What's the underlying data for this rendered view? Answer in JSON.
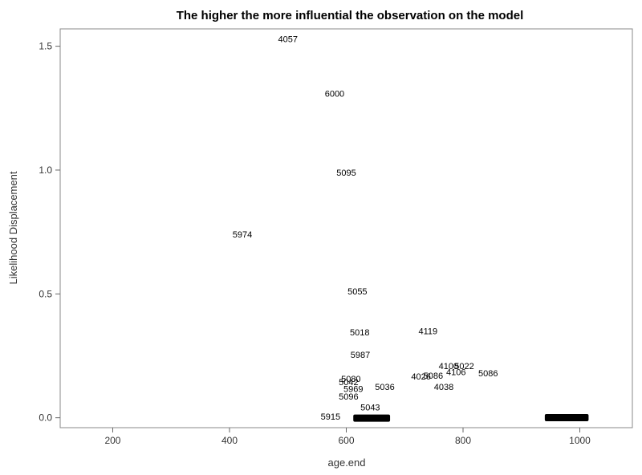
{
  "chart_data": {
    "type": "scatter",
    "title": "The higher the more influential the observation on the model",
    "xlabel": "age.end",
    "ylabel": "Likelihood Displacement",
    "xlim": [
      110,
      1090
    ],
    "ylim": [
      -0.04,
      1.57
    ],
    "xticks": [
      200,
      400,
      600,
      800,
      1000
    ],
    "yticks": [
      0.0,
      0.5,
      1.0,
      1.5
    ],
    "ytick_labels": [
      "0.0",
      "0.5",
      "1.0",
      "1.5"
    ],
    "grid": false,
    "points": [
      {
        "label": "4057",
        "x": 500,
        "y": 1.53
      },
      {
        "label": "6000",
        "x": 580,
        "y": 1.31
      },
      {
        "label": "5095",
        "x": 600,
        "y": 0.99
      },
      {
        "label": "5974",
        "x": 422,
        "y": 0.74
      },
      {
        "label": "5055",
        "x": 619,
        "y": 0.51
      },
      {
        "label": "5018",
        "x": 623,
        "y": 0.345
      },
      {
        "label": "4119",
        "x": 740,
        "y": 0.35
      },
      {
        "label": "5987",
        "x": 624,
        "y": 0.255
      },
      {
        "label": "4100",
        "x": 775,
        "y": 0.21
      },
      {
        "label": "5022",
        "x": 802,
        "y": 0.21
      },
      {
        "label": "4106",
        "x": 788,
        "y": 0.185
      },
      {
        "label": "5086",
        "x": 843,
        "y": 0.18
      },
      {
        "label": "4026",
        "x": 728,
        "y": 0.168
      },
      {
        "label": "5086",
        "x": 749,
        "y": 0.171
      },
      {
        "label": "5080",
        "x": 608,
        "y": 0.158
      },
      {
        "label": "5042",
        "x": 604,
        "y": 0.145
      },
      {
        "label": "5969",
        "x": 612,
        "y": 0.117
      },
      {
        "label": "5036",
        "x": 666,
        "y": 0.125
      },
      {
        "label": "4038",
        "x": 767,
        "y": 0.125
      },
      {
        "label": "5096",
        "x": 604,
        "y": 0.087
      },
      {
        "label": "5043",
        "x": 641,
        "y": 0.043
      },
      {
        "label": "5915",
        "x": 573,
        "y": 0.005
      }
    ],
    "clusters": [
      {
        "x_range": [
          612,
          675
        ],
        "y": 0.0
      },
      {
        "x_range": [
          940,
          1015
        ],
        "y": 0.002
      }
    ]
  }
}
